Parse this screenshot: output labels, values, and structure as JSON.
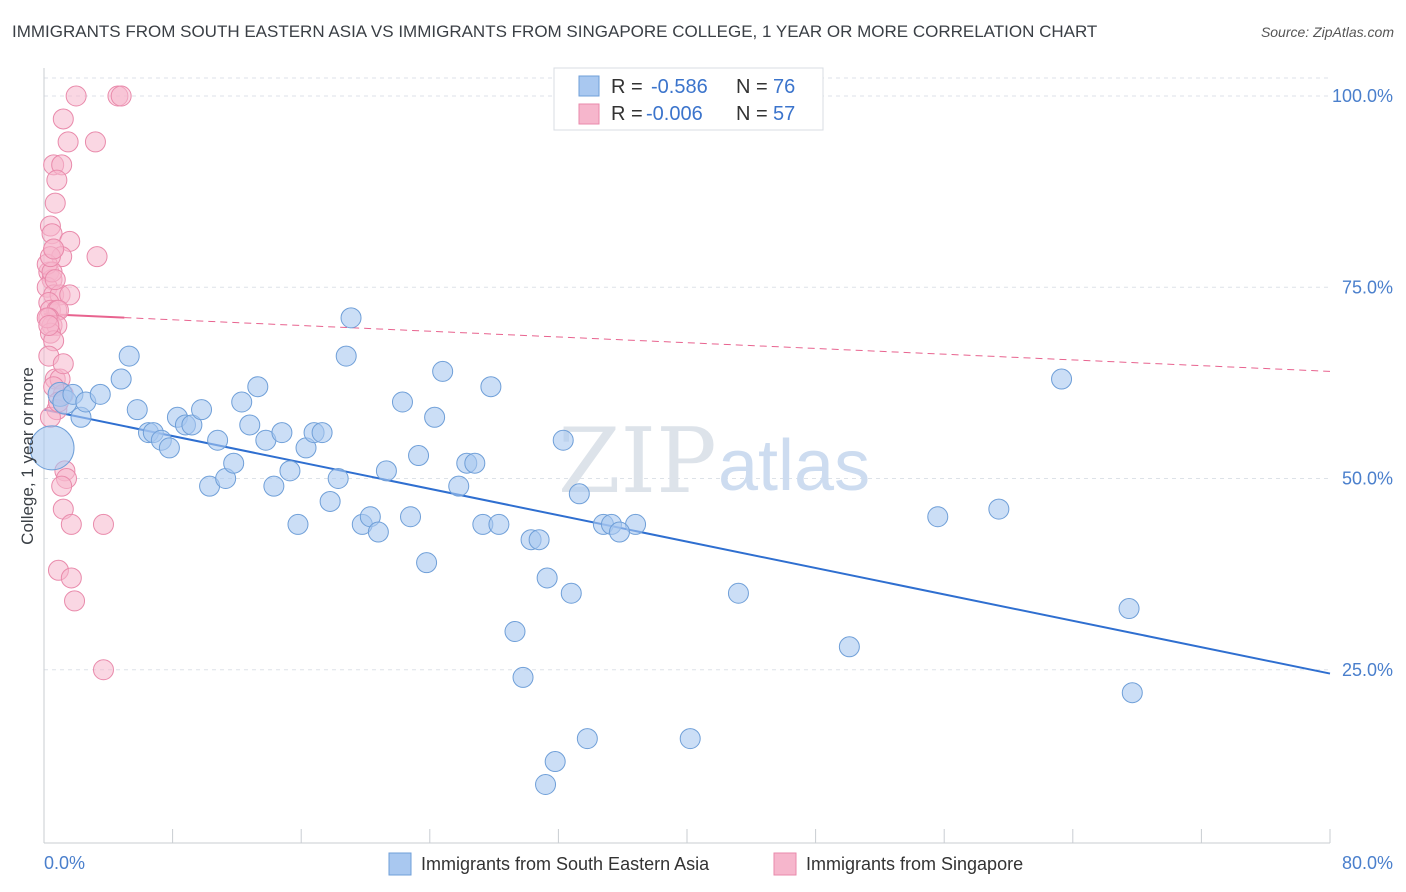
{
  "header": {
    "title": "IMMIGRANTS FROM SOUTH EASTERN ASIA VS IMMIGRANTS FROM SINGAPORE COLLEGE, 1 YEAR OR MORE CORRELATION CHART",
    "source": "Source: ZipAtlas.com"
  },
  "watermark": {
    "zip": "ZIP",
    "atlas": "atlas"
  },
  "legend": {
    "rows": [
      {
        "r_label": "R =",
        "r_value": "-0.586",
        "n_label": "N =",
        "n_value": "76"
      },
      {
        "r_label": "R =",
        "r_value": "-0.006",
        "n_label": "N =",
        "n_value": "57"
      }
    ]
  },
  "bottom_legend": {
    "blue": "Immigrants from South Eastern Asia",
    "pink": "Immigrants from Singapore"
  },
  "colors": {
    "blue_fill": "#a9c8f0",
    "blue_stroke": "#6f9fd8",
    "blue_line": "#2f6fd0",
    "pink_fill": "#f6b6cc",
    "pink_stroke": "#e98aab",
    "pink_line": "#e8638f",
    "tick_text": "#4a7fcc",
    "grid": "#dde2e8"
  },
  "chart_data": {
    "type": "scatter",
    "title": "IMMIGRANTS FROM SOUTH EASTERN ASIA VS IMMIGRANTS FROM SINGAPORE COLLEGE, 1 YEAR OR MORE CORRELATION CHART",
    "xlabel": "",
    "ylabel": "College, 1 year or more",
    "xlim": [
      0,
      80
    ],
    "ylim": [
      0,
      100
    ],
    "x_ticks": [
      "0.0%",
      "80.0%"
    ],
    "y_ticks": [
      {
        "value": 25,
        "label": "25.0%"
      },
      {
        "value": 50,
        "label": "50.0%"
      },
      {
        "value": 75,
        "label": "75.0%"
      },
      {
        "value": 100,
        "label": "100.0%"
      }
    ],
    "grid": true,
    "legend_position": "top-center",
    "series": [
      {
        "name": "Immigrants from South Eastern Asia",
        "color": "#a9c8f0",
        "trend": {
          "x0": 0,
          "y0": 59,
          "x1": 80,
          "y1": 24.5,
          "dashed": false
        },
        "points": [
          [
            0.5,
            54,
            22
          ],
          [
            1.0,
            61,
            12
          ],
          [
            1.3,
            60,
            12
          ],
          [
            1.8,
            61,
            10
          ],
          [
            2.3,
            58,
            10
          ],
          [
            2.6,
            60,
            10
          ],
          [
            3.5,
            61,
            10
          ],
          [
            4.8,
            63,
            10
          ],
          [
            5.3,
            66,
            10
          ],
          [
            5.8,
            59,
            10
          ],
          [
            6.5,
            56,
            10
          ],
          [
            6.8,
            56,
            10
          ],
          [
            7.3,
            55,
            10
          ],
          [
            7.8,
            54,
            10
          ],
          [
            8.3,
            58,
            10
          ],
          [
            8.8,
            57,
            10
          ],
          [
            9.2,
            57,
            10
          ],
          [
            9.8,
            59,
            10
          ],
          [
            10.3,
            49,
            10
          ],
          [
            10.8,
            55,
            10
          ],
          [
            11.3,
            50,
            10
          ],
          [
            11.8,
            52,
            10
          ],
          [
            12.3,
            60,
            10
          ],
          [
            12.8,
            57,
            10
          ],
          [
            13.3,
            62,
            10
          ],
          [
            13.8,
            55,
            10
          ],
          [
            14.3,
            49,
            10
          ],
          [
            14.8,
            56,
            10
          ],
          [
            15.3,
            51,
            10
          ],
          [
            15.8,
            44,
            10
          ],
          [
            16.3,
            54,
            10
          ],
          [
            16.8,
            56,
            10
          ],
          [
            17.3,
            56,
            10
          ],
          [
            17.8,
            47,
            10
          ],
          [
            18.3,
            50,
            10
          ],
          [
            18.8,
            66,
            10
          ],
          [
            19.1,
            71,
            10
          ],
          [
            19.8,
            44,
            10
          ],
          [
            20.3,
            45,
            10
          ],
          [
            20.8,
            43,
            10
          ],
          [
            21.3,
            51,
            10
          ],
          [
            22.3,
            60,
            10
          ],
          [
            22.8,
            45,
            10
          ],
          [
            23.3,
            53,
            10
          ],
          [
            23.8,
            39,
            10
          ],
          [
            24.3,
            58,
            10
          ],
          [
            24.8,
            64,
            10
          ],
          [
            25.8,
            49,
            10
          ],
          [
            26.3,
            52,
            10
          ],
          [
            27.3,
            44,
            10
          ],
          [
            26.8,
            52,
            10
          ],
          [
            27.8,
            62,
            10
          ],
          [
            28.3,
            44,
            10
          ],
          [
            29.3,
            30,
            10
          ],
          [
            29.8,
            24,
            10
          ],
          [
            30.3,
            42,
            10
          ],
          [
            30.8,
            42,
            10
          ],
          [
            31.3,
            37,
            10
          ],
          [
            31.8,
            13,
            10
          ],
          [
            32.3,
            55,
            10
          ],
          [
            32.8,
            35,
            10
          ],
          [
            33.3,
            48,
            10
          ],
          [
            33.8,
            16,
            10
          ],
          [
            34.8,
            44,
            10
          ],
          [
            35.3,
            44,
            10
          ],
          [
            36.8,
            44,
            10
          ],
          [
            35.8,
            43,
            10
          ],
          [
            43.2,
            35,
            10
          ],
          [
            50.1,
            28,
            10
          ],
          [
            55.6,
            45,
            10
          ],
          [
            59.4,
            46,
            10
          ],
          [
            63.3,
            63,
            10
          ],
          [
            67.5,
            33,
            10
          ],
          [
            67.7,
            22,
            10
          ],
          [
            40.2,
            16,
            10
          ],
          [
            31.2,
            10,
            10
          ]
        ]
      },
      {
        "name": "Immigrants from Singapore",
        "color": "#f6b6cc",
        "trend": {
          "x0": 0,
          "y0": 71.5,
          "x1": 80,
          "y1": 64,
          "solid_until_x": 5
        },
        "points": [
          [
            2.0,
            100,
            10
          ],
          [
            4.6,
            100,
            10
          ],
          [
            4.8,
            100,
            10
          ],
          [
            1.2,
            97,
            10
          ],
          [
            1.5,
            94,
            10
          ],
          [
            3.2,
            94,
            10
          ],
          [
            0.6,
            91,
            10
          ],
          [
            1.1,
            91,
            10
          ],
          [
            0.8,
            89,
            10
          ],
          [
            0.7,
            86,
            10
          ],
          [
            0.4,
            83,
            10
          ],
          [
            0.5,
            82,
            10
          ],
          [
            1.6,
            81,
            10
          ],
          [
            0.6,
            80,
            10
          ],
          [
            1.1,
            79,
            10
          ],
          [
            3.3,
            79,
            10
          ],
          [
            0.3,
            77,
            10
          ],
          [
            0.5,
            76,
            10
          ],
          [
            0.2,
            75,
            10
          ],
          [
            0.6,
            74,
            10
          ],
          [
            1.0,
            74,
            10
          ],
          [
            1.6,
            74,
            10
          ],
          [
            0.3,
            73,
            10
          ],
          [
            0.4,
            72,
            10
          ],
          [
            0.8,
            72,
            10
          ],
          [
            0.9,
            72,
            10
          ],
          [
            0.3,
            71,
            10
          ],
          [
            0.5,
            70,
            10
          ],
          [
            0.8,
            70,
            10
          ],
          [
            0.4,
            69,
            10
          ],
          [
            0.6,
            68,
            10
          ],
          [
            0.3,
            66,
            10
          ],
          [
            0.7,
            63,
            10
          ],
          [
            1.0,
            63,
            10
          ],
          [
            1.2,
            61,
            10
          ],
          [
            0.8,
            59,
            10
          ],
          [
            0.4,
            58,
            10
          ],
          [
            1.3,
            51,
            10
          ],
          [
            1.4,
            50,
            10
          ],
          [
            1.1,
            49,
            10
          ],
          [
            1.2,
            46,
            10
          ],
          [
            1.7,
            44,
            10
          ],
          [
            3.7,
            44,
            10
          ],
          [
            0.9,
            38,
            10
          ],
          [
            1.7,
            37,
            10
          ],
          [
            1.9,
            34,
            10
          ],
          [
            3.7,
            25,
            10
          ],
          [
            0.2,
            78,
            10
          ],
          [
            0.5,
            77,
            10
          ],
          [
            0.7,
            76,
            10
          ],
          [
            0.2,
            71,
            10
          ],
          [
            0.3,
            70,
            10
          ],
          [
            1.2,
            65,
            10
          ],
          [
            0.6,
            62,
            10
          ],
          [
            0.9,
            60,
            10
          ],
          [
            0.4,
            79,
            10
          ],
          [
            0.6,
            80,
            10
          ]
        ]
      }
    ]
  }
}
